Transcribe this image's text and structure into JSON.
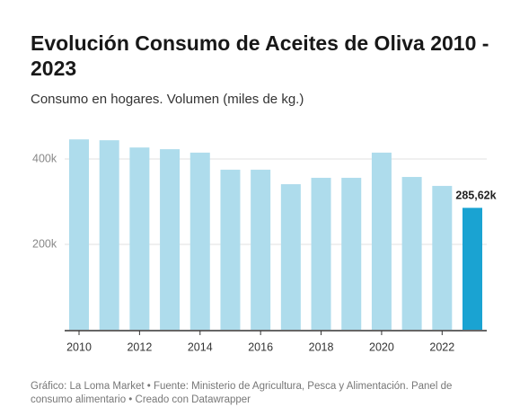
{
  "chart_data": {
    "type": "bar",
    "title": "Evolución Consumo de Aceites de Oliva 2010 - 2023",
    "subtitle": "Consumo en hogares. Volumen (miles de kg.)",
    "footer": "Gráfico: La Loma Market • Fuente: Ministerio de Agricultura, Pesca y Alimentación. Panel de consumo alimentario • Creado con Datawrapper",
    "x": [
      2010,
      2011,
      2012,
      2013,
      2014,
      2015,
      2016,
      2017,
      2018,
      2019,
      2020,
      2021,
      2022,
      2023
    ],
    "values": [
      446000,
      444000,
      427000,
      423000,
      415000,
      375000,
      375000,
      341000,
      356000,
      356000,
      415000,
      358000,
      337000,
      285620
    ],
    "value_labels": [
      null,
      null,
      null,
      null,
      null,
      null,
      null,
      null,
      null,
      null,
      null,
      null,
      null,
      "285,62k"
    ],
    "colors": [
      "#aedcec",
      "#aedcec",
      "#aedcec",
      "#aedcec",
      "#aedcec",
      "#aedcec",
      "#aedcec",
      "#aedcec",
      "#aedcec",
      "#aedcec",
      "#aedcec",
      "#aedcec",
      "#aedcec",
      "#1aa3d2"
    ],
    "xlim": [
      2010,
      2023
    ],
    "xticks": [
      2010,
      2012,
      2014,
      2016,
      2018,
      2020,
      2022
    ],
    "ylim": [
      0,
      450000
    ],
    "yticks": [
      {
        "value": 200000,
        "label": "200k"
      },
      {
        "value": 400000,
        "label": "400k"
      }
    ],
    "grid": true
  }
}
